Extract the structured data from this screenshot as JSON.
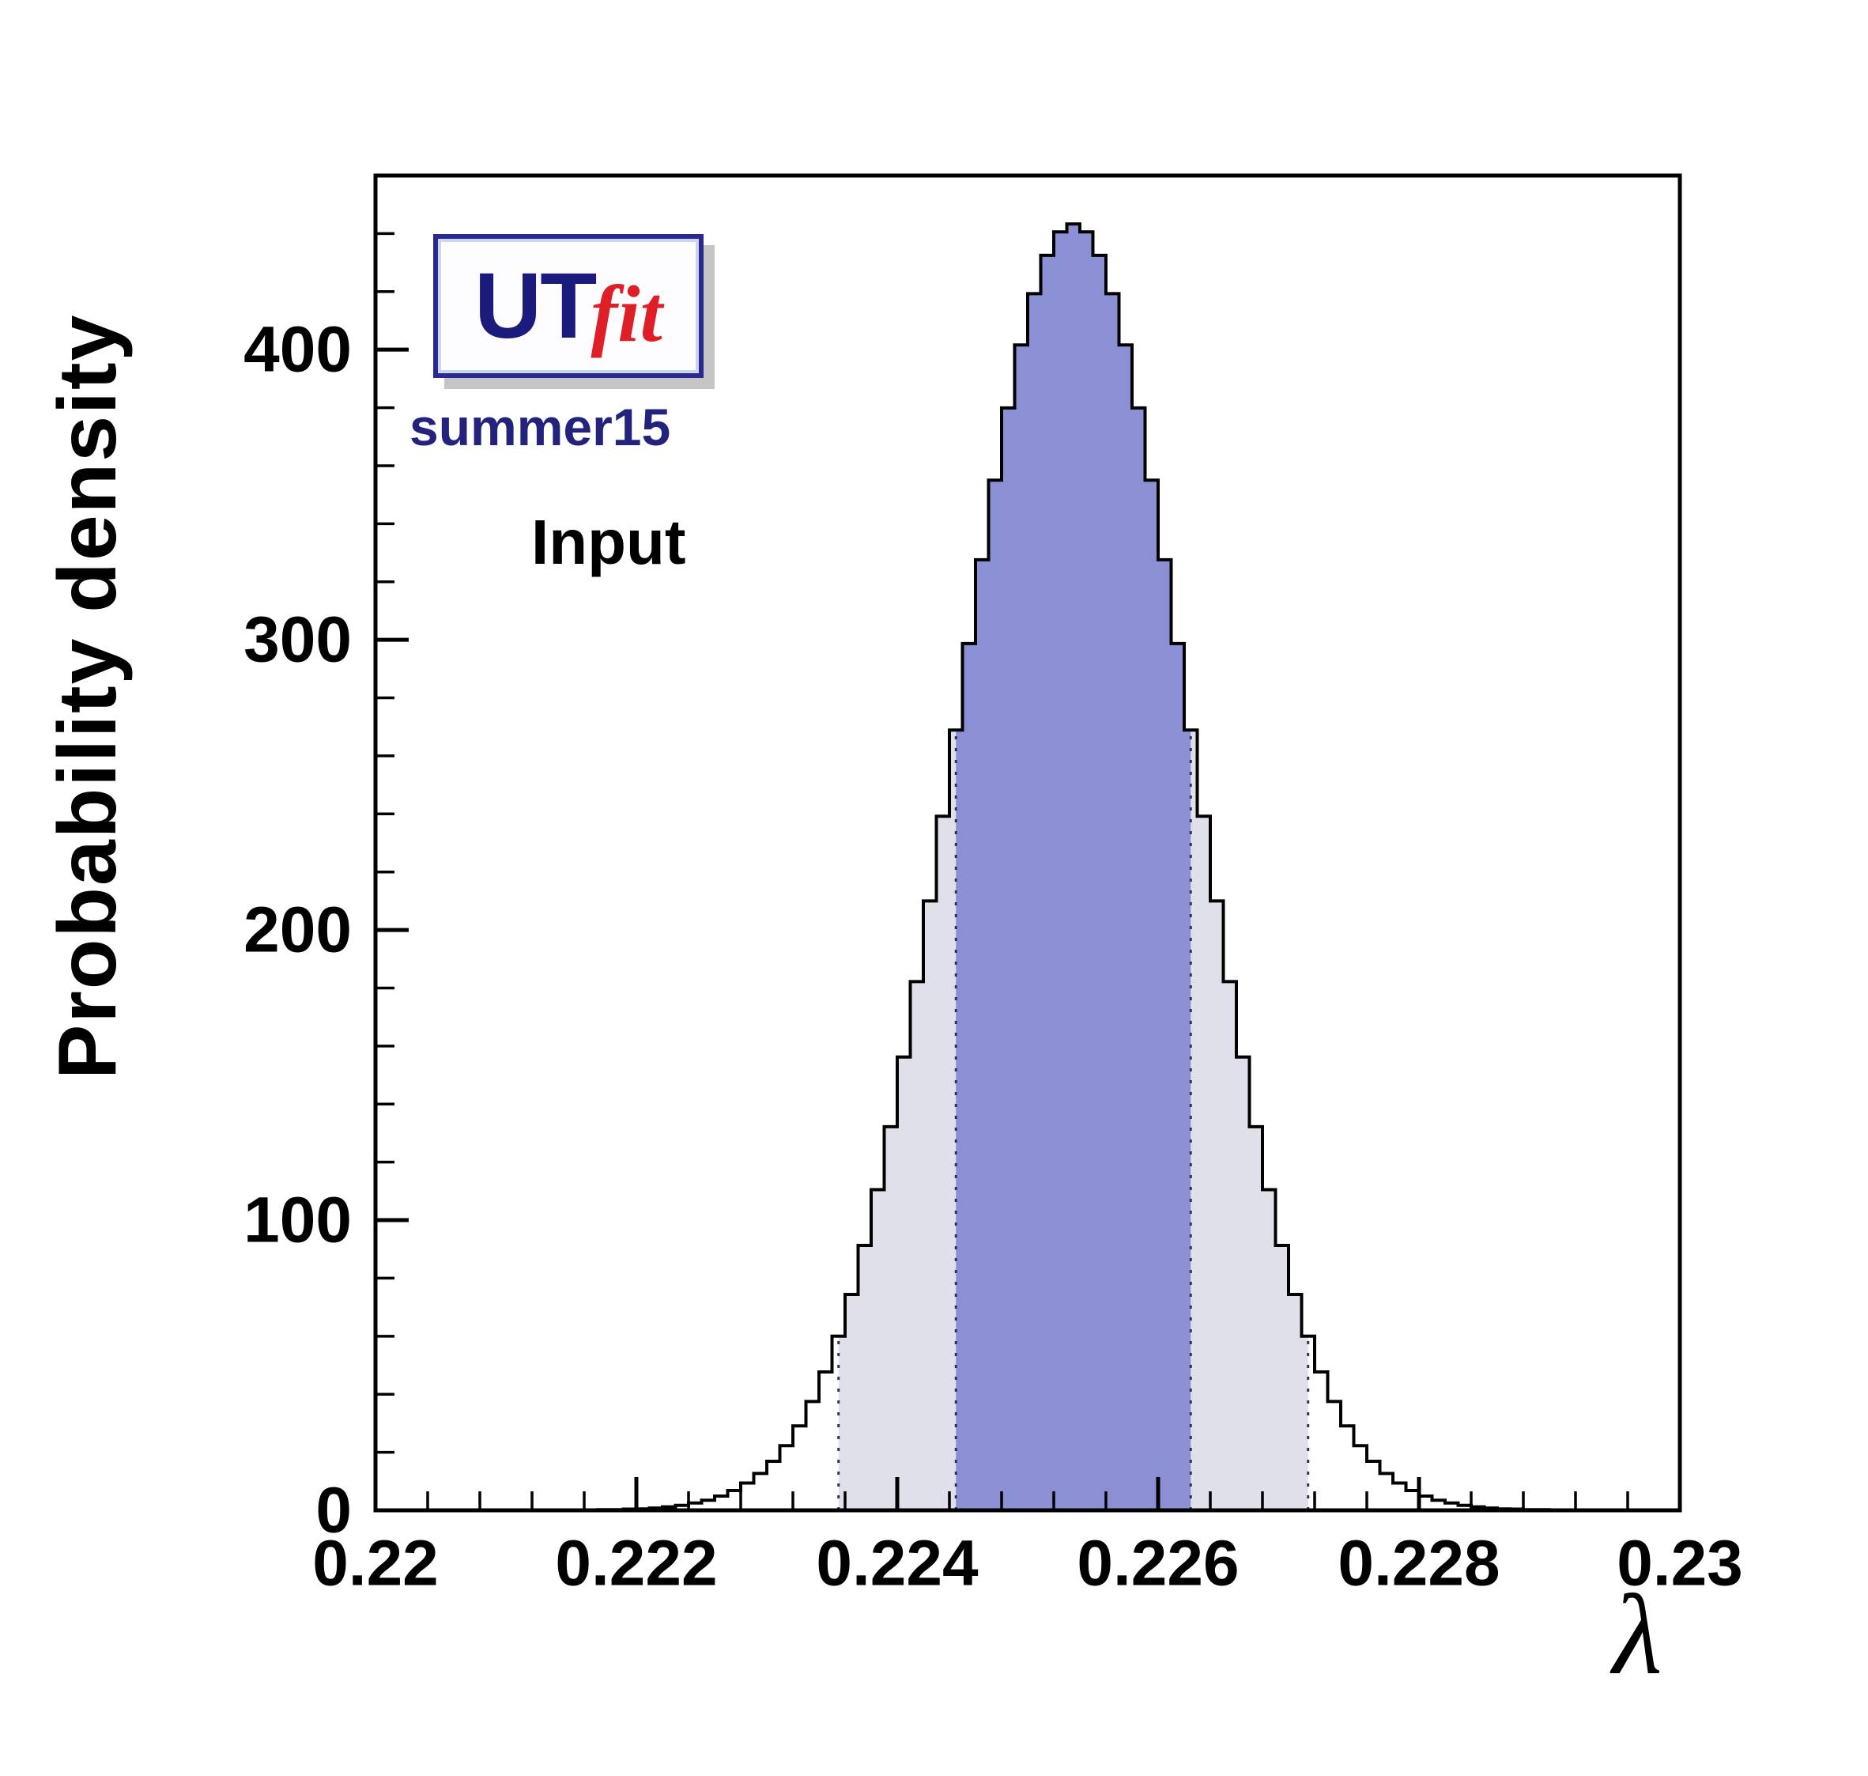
{
  "page": {
    "background": "#ffffff"
  },
  "logo": {
    "text_ut": "UT",
    "text_fit": "fit",
    "sublabel": "summer15",
    "ut_color": "#1b1b7e",
    "fit_color": "#df1f27",
    "border_color": "#2a2a8e"
  },
  "annotation": {
    "input_label": "Input"
  },
  "chart_data": {
    "type": "bar",
    "title": "",
    "xlabel": "λ",
    "ylabel": "Probability density",
    "xlim": [
      0.22,
      0.23
    ],
    "ylim": [
      0,
      460
    ],
    "grid": false,
    "legend": "none",
    "x_major_ticks": [
      0.22,
      0.222,
      0.224,
      0.226,
      0.228,
      0.23
    ],
    "x_tick_labels": [
      "0.22",
      "0.222",
      "0.224",
      "0.226",
      "0.228",
      "0.23"
    ],
    "x_minor_step": 0.0004,
    "y_major_ticks": [
      0,
      100,
      200,
      300,
      400
    ],
    "y_tick_labels": [
      "0",
      "100",
      "200",
      "300",
      "400"
    ],
    "y_minor_step": 20,
    "distribution": {
      "shape": "gaussian",
      "mean": 0.22535,
      "sigma": 0.0009,
      "peak_density": 443.3
    },
    "bin_start": 0.22,
    "bin_width": 0.0001,
    "values": [
      0,
      0,
      0,
      0,
      0,
      0,
      0,
      0,
      0,
      0,
      0,
      0,
      0,
      0,
      0,
      0.1,
      0.1,
      0.2,
      0.2,
      0.4,
      0.5,
      0.8,
      1.2,
      1.7,
      2.5,
      3.5,
      4.9,
      6.8,
      9.4,
      12.7,
      16.9,
      22.3,
      29.1,
      37.5,
      47.7,
      60,
      74.4,
      91.3,
      110.5,
      132.2,
      156.2,
      182.2,
      210,
      239.2,
      268.9,
      298.7,
      327.6,
      355,
      379.9,
      401.6,
      419.3,
      432.5,
      440.6,
      443.3,
      440.6,
      432.5,
      419.3,
      401.6,
      379.9,
      355,
      327.6,
      298.7,
      268.9,
      239.2,
      210,
      182.2,
      156.2,
      132.2,
      110.5,
      91.3,
      74.4,
      60,
      47.7,
      37.5,
      29.1,
      22.3,
      16.9,
      12.7,
      9.4,
      6.8,
      4.9,
      3.5,
      2.5,
      1.7,
      1.2,
      0.8,
      0.5,
      0.4,
      0.2,
      0.2,
      0.1,
      0.1,
      0,
      0,
      0,
      0,
      0,
      0,
      0,
      0
    ],
    "region68": [
      0.22445,
      0.22625
    ],
    "region95": [
      0.22355,
      0.22715
    ],
    "colors": {
      "fill68": "#8b8fd4",
      "fill95": "#dfe0ea",
      "outline": "#000000",
      "dotted": "#33334d",
      "frame": "#000000"
    }
  }
}
